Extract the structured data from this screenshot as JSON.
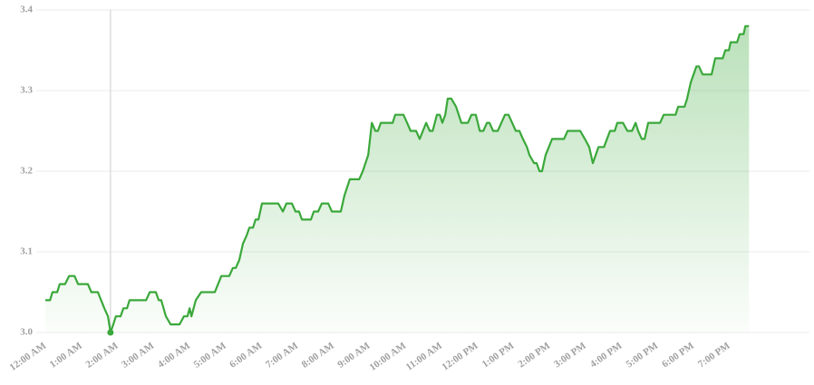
{
  "chart_data": {
    "type": "line",
    "x": [
      0,
      0.13,
      0.2,
      0.33,
      0.4,
      0.55,
      0.66,
      0.81,
      0.91,
      1.18,
      1.28,
      1.46,
      1.64,
      1.74,
      1.81,
      1.89,
      1.96,
      2.09,
      2.17,
      2.27,
      2.34,
      2.8,
      2.9,
      3.07,
      3.15,
      3.22,
      3.35,
      3.48,
      3.73,
      3.85,
      3.95,
      4.01,
      4.06,
      4.18,
      4.33,
      4.71,
      4.89,
      5.11,
      5.21,
      5.29,
      5.39,
      5.49,
      5.59,
      5.67,
      5.77,
      5.84,
      5.92,
      6.02,
      6.47,
      6.6,
      6.7,
      6.85,
      6.95,
      7.05,
      7.13,
      7.38,
      7.46,
      7.58,
      7.68,
      7.86,
      7.96,
      8.21,
      8.31,
      8.46,
      8.72,
      8.82,
      8.97,
      9.07,
      9.17,
      9.24,
      9.32,
      9.65,
      9.72,
      9.95,
      10.05,
      10.15,
      10.3,
      10.4,
      10.58,
      10.68,
      10.76,
      10.88,
      10.96,
      11.03,
      11.11,
      11.18,
      11.28,
      11.41,
      11.56,
      11.74,
      11.84,
      11.96,
      12.07,
      12.17,
      12.27,
      12.34,
      12.44,
      12.57,
      12.67,
      12.77,
      12.87,
      12.97,
      13.07,
      13.17,
      13.27,
      13.38,
      13.45,
      13.58,
      13.65,
      13.73,
      13.8,
      13.9,
      14.08,
      14.41,
      14.51,
      14.86,
      14.99,
      15.11,
      15.21,
      15.37,
      15.52,
      15.69,
      15.82,
      15.89,
      16.05,
      16.17,
      16.3,
      16.4,
      16.47,
      16.57,
      16.65,
      16.75,
      17.08,
      17.18,
      17.51,
      17.58,
      17.76,
      17.83,
      17.93,
      18.09,
      18.16,
      18.26,
      18.51,
      18.61,
      18.82,
      18.89,
      18.99,
      19.04,
      19.22,
      19.29,
      19.4,
      19.45,
      19.55
    ],
    "values": [
      3.04,
      3.04,
      3.05,
      3.05,
      3.06,
      3.06,
      3.07,
      3.07,
      3.06,
      3.06,
      3.05,
      3.05,
      3.03,
      3.02,
      3.0,
      3.01,
      3.02,
      3.02,
      3.03,
      3.03,
      3.04,
      3.04,
      3.05,
      3.05,
      3.04,
      3.04,
      3.02,
      3.01,
      3.01,
      3.02,
      3.02,
      3.03,
      3.02,
      3.04,
      3.05,
      3.05,
      3.07,
      3.07,
      3.08,
      3.08,
      3.09,
      3.11,
      3.12,
      3.13,
      3.13,
      3.14,
      3.14,
      3.16,
      3.16,
      3.15,
      3.16,
      3.16,
      3.15,
      3.15,
      3.14,
      3.14,
      3.15,
      3.15,
      3.16,
      3.16,
      3.15,
      3.15,
      3.17,
      3.19,
      3.19,
      3.2,
      3.22,
      3.26,
      3.25,
      3.25,
      3.26,
      3.26,
      3.27,
      3.27,
      3.26,
      3.25,
      3.25,
      3.24,
      3.26,
      3.25,
      3.25,
      3.27,
      3.27,
      3.26,
      3.27,
      3.29,
      3.29,
      3.28,
      3.26,
      3.26,
      3.27,
      3.27,
      3.25,
      3.25,
      3.26,
      3.26,
      3.25,
      3.25,
      3.26,
      3.27,
      3.27,
      3.26,
      3.25,
      3.25,
      3.24,
      3.23,
      3.22,
      3.21,
      3.21,
      3.2,
      3.2,
      3.22,
      3.24,
      3.24,
      3.25,
      3.25,
      3.24,
      3.23,
      3.21,
      3.23,
      3.23,
      3.25,
      3.25,
      3.26,
      3.26,
      3.25,
      3.25,
      3.26,
      3.25,
      3.24,
      3.24,
      3.26,
      3.26,
      3.27,
      3.27,
      3.28,
      3.28,
      3.29,
      3.31,
      3.33,
      3.33,
      3.32,
      3.32,
      3.34,
      3.34,
      3.35,
      3.35,
      3.36,
      3.36,
      3.37,
      3.37,
      3.38,
      3.38
    ],
    "color": "#3aa83a",
    "xlim": [
      0,
      21.23
    ],
    "xticks": [
      {
        "value": 0,
        "label": "12:00 AM"
      },
      {
        "value": 1,
        "label": "1:00 AM"
      },
      {
        "value": 2,
        "label": "2:00 AM"
      },
      {
        "value": 3,
        "label": "3:00 AM"
      },
      {
        "value": 4,
        "label": "4:00 AM"
      },
      {
        "value": 5,
        "label": "5:00 AM"
      },
      {
        "value": 6,
        "label": "6:00 AM"
      },
      {
        "value": 7,
        "label": "7:00 AM"
      },
      {
        "value": 8,
        "label": "8:00 AM"
      },
      {
        "value": 9,
        "label": "9:00 AM"
      },
      {
        "value": 10,
        "label": "10:00 AM"
      },
      {
        "value": 11,
        "label": "11:00 AM"
      },
      {
        "value": 12,
        "label": "12:00 PM"
      },
      {
        "value": 13,
        "label": "1:00 PM"
      },
      {
        "value": 14,
        "label": "2:00 PM"
      },
      {
        "value": 15,
        "label": "3:00 PM"
      },
      {
        "value": 16,
        "label": "4:00 PM"
      },
      {
        "value": 17,
        "label": "5:00 PM"
      },
      {
        "value": 18,
        "label": "6:00 PM"
      },
      {
        "value": 19,
        "label": "7:00 PM"
      }
    ],
    "ylim": [
      3.0,
      3.4
    ],
    "yticks": [
      {
        "value": 3,
        "label": "3.0"
      },
      3.1,
      3.2,
      3.3,
      3.4
    ],
    "grid": true,
    "hover_index": 14
  }
}
